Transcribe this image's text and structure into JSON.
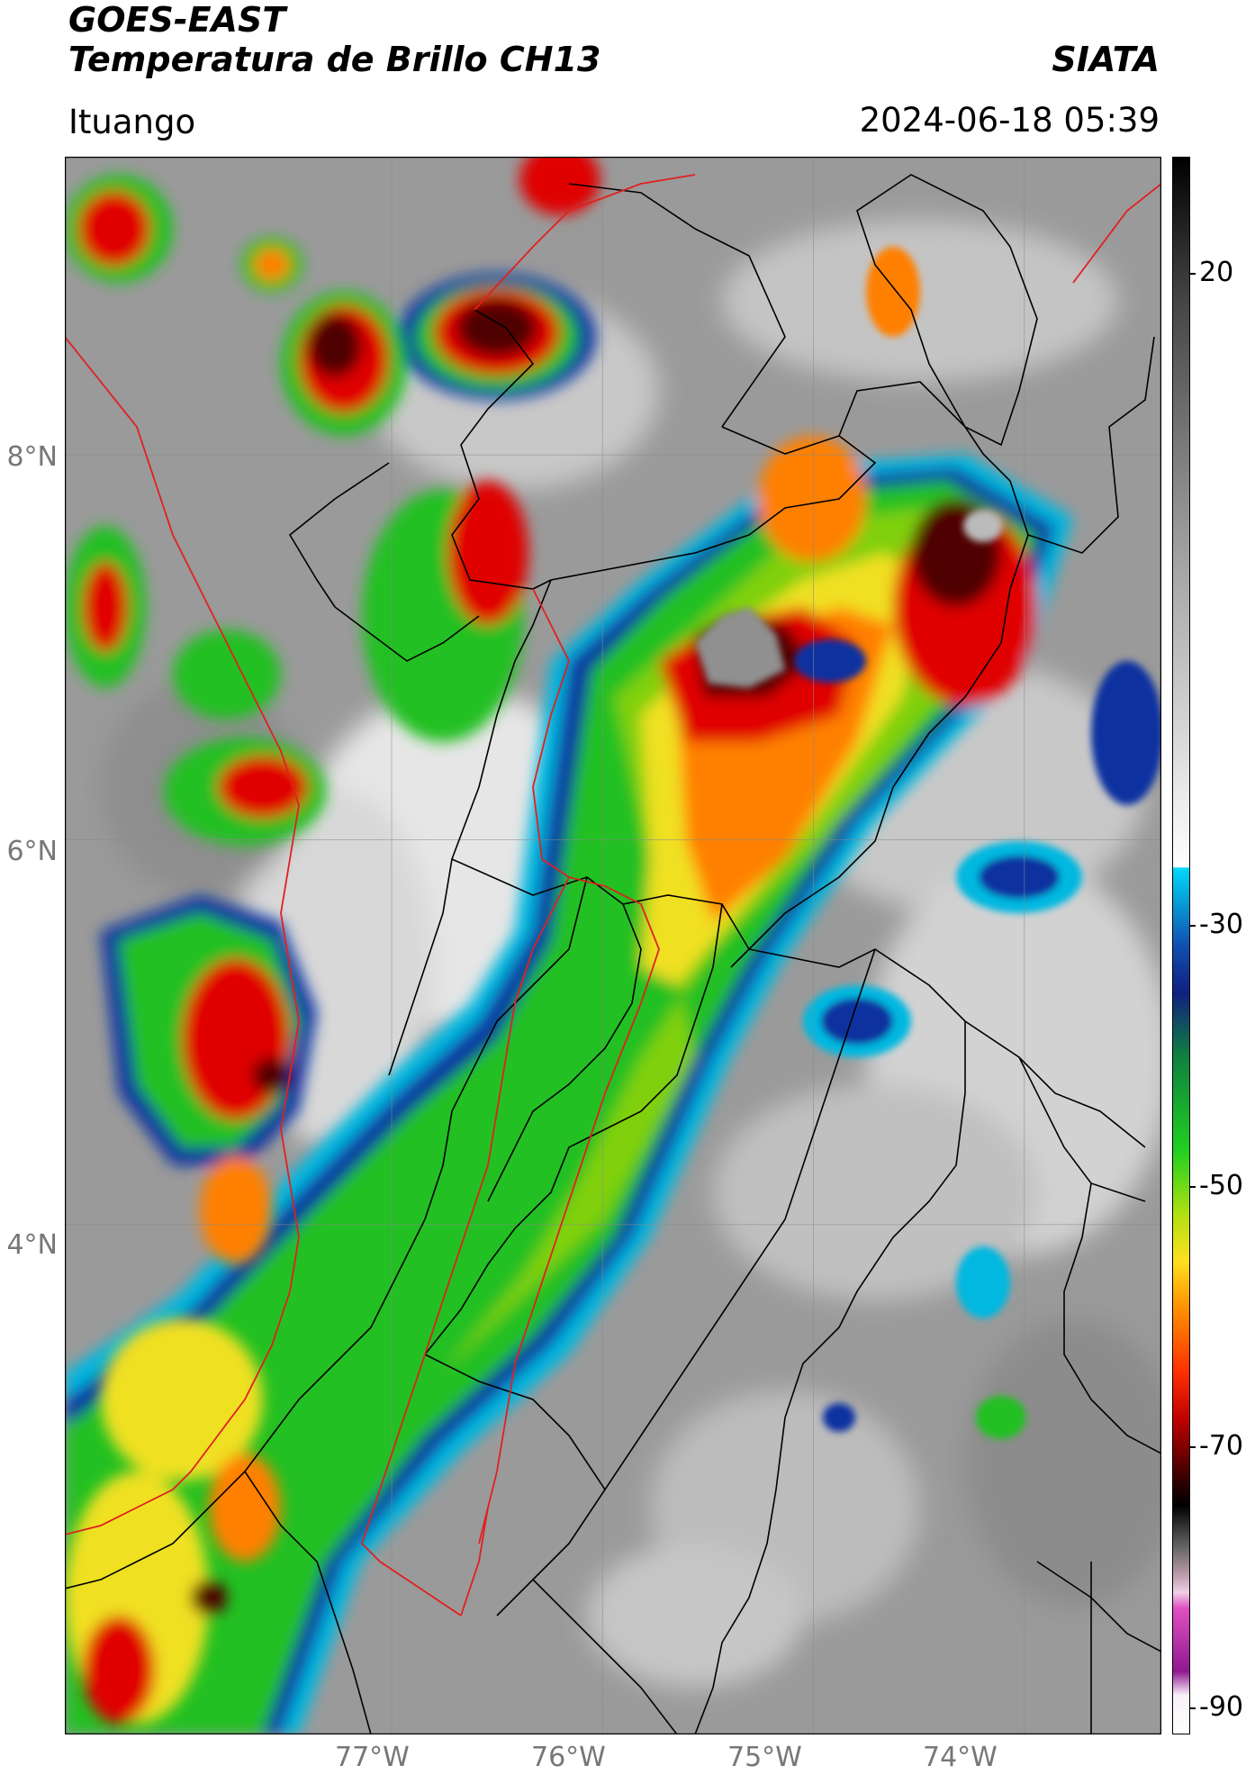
{
  "header": {
    "satellite": "GOES-EAST",
    "product": "Temperatura de Brillo CH13",
    "org": "SIATA",
    "location": "Ituango",
    "datetime": "2024-06-18 05:39"
  },
  "map": {
    "lat_labels": [
      "8°N",
      "6°N",
      "4°N"
    ],
    "lon_labels": [
      "77°W",
      "76°W",
      "75°W",
      "74°W"
    ],
    "lat_values": [
      8,
      6,
      4
    ],
    "lon_values": [
      -77,
      -76,
      -75,
      -74
    ],
    "extent": {
      "lon_min": -78.55,
      "lon_max": -73.35,
      "lat_min": 1.35,
      "lat_max": 9.55
    }
  },
  "colorbar": {
    "ticks": [
      "20",
      "-30",
      "-50",
      "-70",
      "-90"
    ],
    "tick_values": [
      20,
      -30,
      -50,
      -70,
      -90
    ],
    "range": [
      -92,
      29
    ],
    "colors": {
      "warm_gray": "#b0b0b0",
      "cyan": "#00b8e0",
      "blue": "#1030a0",
      "green": "#20c020",
      "yellow": "#f0e020",
      "orange": "#ff8000",
      "red": "#e00000",
      "dark_red": "#500000",
      "black": "#000000",
      "magenta": "#e040d0",
      "purple": "#801880"
    }
  }
}
